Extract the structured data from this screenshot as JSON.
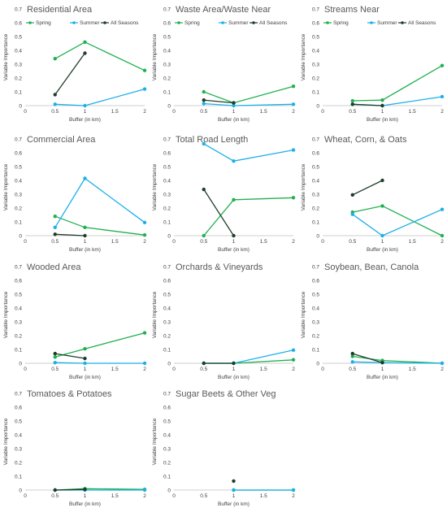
{
  "colors": {
    "spring": "#1fb04f",
    "summer": "#1cb0e8",
    "all_seasons": "#1f3d2a",
    "axis": "#bfbfbf",
    "text": "#595959"
  },
  "chart_data": [
    {
      "type": "line",
      "title": "Residential Area",
      "xlabel": "Buffer (in km)",
      "ylabel": "Variable Importance",
      "xlim": [
        0,
        2
      ],
      "ylim": [
        0,
        0.7
      ],
      "xticks": [
        "0",
        "0.5",
        "1",
        "1.5",
        "2"
      ],
      "yticks": [
        "0",
        "0.1",
        "0.2",
        "0.3",
        "0.4",
        "0.5",
        "0.6",
        "0.7"
      ],
      "legend": [
        "Spring",
        "Summer",
        "All Seasons"
      ],
      "series": [
        {
          "name": "Spring",
          "key": "spring",
          "points": [
            [
              0.5,
              0.34
            ],
            [
              1,
              0.46
            ],
            [
              2,
              0.255
            ]
          ]
        },
        {
          "name": "Summer",
          "key": "summer",
          "points": [
            [
              0.5,
              0.01
            ],
            [
              1,
              0.0
            ],
            [
              2,
              0.12
            ]
          ]
        },
        {
          "name": "All Seasons",
          "key": "all_seasons",
          "points": [
            [
              0.5,
              0.08
            ],
            [
              1,
              0.38
            ]
          ]
        }
      ]
    },
    {
      "type": "line",
      "title": "Waste Area/Waste Near",
      "xlabel": "Buffer (in km)",
      "ylabel": "Variable Importance",
      "xlim": [
        0,
        2
      ],
      "ylim": [
        0,
        0.7
      ],
      "xticks": [
        "0",
        "0.5",
        "1",
        "1.5",
        "2"
      ],
      "yticks": [
        "0",
        "0.1",
        "0.2",
        "0.3",
        "0.4",
        "0.5",
        "0.6",
        "0.7"
      ],
      "legend": [
        "Spring",
        "Summer",
        "All Seasons"
      ],
      "series": [
        {
          "name": "Spring",
          "key": "spring",
          "points": [
            [
              0.5,
              0.1
            ],
            [
              1,
              0.02
            ],
            [
              2,
              0.14
            ]
          ]
        },
        {
          "name": "Summer",
          "key": "summer",
          "points": [
            [
              0.5,
              0.015
            ],
            [
              1,
              0.0
            ],
            [
              2,
              0.01
            ]
          ]
        },
        {
          "name": "All Seasons",
          "key": "all_seasons",
          "points": [
            [
              0.5,
              0.04
            ],
            [
              1,
              0.02
            ]
          ]
        }
      ]
    },
    {
      "type": "line",
      "title": "Streams Near",
      "xlabel": "Buffer (in km)",
      "ylabel": "Variable Importance",
      "xlim": [
        0,
        2
      ],
      "ylim": [
        0,
        0.7
      ],
      "xticks": [
        "0",
        "0.5",
        "1",
        "1.5",
        "2"
      ],
      "yticks": [
        "0",
        "0.1",
        "0.2",
        "0.3",
        "0.4",
        "0.5",
        "0.6",
        "0.7"
      ],
      "legend": [
        "Spring",
        "Summer",
        "All Seasons"
      ],
      "series": [
        {
          "name": "Spring",
          "key": "spring",
          "points": [
            [
              0.5,
              0.035
            ],
            [
              1,
              0.04
            ],
            [
              2,
              0.29
            ]
          ]
        },
        {
          "name": "Summer",
          "key": "summer",
          "points": [
            [
              0.5,
              0.01
            ],
            [
              1,
              0.0
            ],
            [
              2,
              0.065
            ]
          ]
        },
        {
          "name": "All Seasons",
          "key": "all_seasons",
          "points": [
            [
              0.5,
              0.01
            ],
            [
              1,
              0.0
            ]
          ]
        }
      ]
    },
    {
      "type": "line",
      "title": "Commercial Area",
      "xlabel": "Buffer (in km)",
      "ylabel": "Variable Importance",
      "xlim": [
        0,
        2
      ],
      "ylim": [
        0,
        0.7
      ],
      "xticks": [
        "0",
        "0.5",
        "1",
        "1.5",
        "2"
      ],
      "yticks": [
        "0",
        "0.1",
        "0.2",
        "0.3",
        "0.4",
        "0.5",
        "0.6",
        "0.7"
      ],
      "legend": [],
      "series": [
        {
          "name": "Spring",
          "key": "spring",
          "points": [
            [
              0.5,
              0.14
            ],
            [
              1,
              0.06
            ],
            [
              2,
              0.005
            ]
          ]
        },
        {
          "name": "Summer",
          "key": "summer",
          "points": [
            [
              0.5,
              0.06
            ],
            [
              1,
              0.415
            ],
            [
              2,
              0.095
            ]
          ]
        },
        {
          "name": "All Seasons",
          "key": "all_seasons",
          "points": [
            [
              0.5,
              0.01
            ],
            [
              1,
              0.0
            ]
          ]
        }
      ]
    },
    {
      "type": "line",
      "title": "Total Road Length",
      "xlabel": "Buffer (in km)",
      "ylabel": "Variable Importance",
      "xlim": [
        0,
        2
      ],
      "ylim": [
        0,
        0.7
      ],
      "xticks": [
        "0",
        "0.5",
        "1",
        "1.5",
        "2"
      ],
      "yticks": [
        "0",
        "0.1",
        "0.2",
        "0.3",
        "0.4",
        "0.5",
        "0.6",
        "0.7"
      ],
      "legend": [],
      "series": [
        {
          "name": "Spring",
          "key": "spring",
          "points": [
            [
              0.5,
              0.0
            ],
            [
              1,
              0.26
            ],
            [
              2,
              0.275
            ]
          ]
        },
        {
          "name": "Summer",
          "key": "summer",
          "points": [
            [
              0.5,
              0.665
            ],
            [
              1,
              0.54
            ],
            [
              2,
              0.62
            ]
          ]
        },
        {
          "name": "All Seasons",
          "key": "all_seasons",
          "points": [
            [
              0.5,
              0.335
            ],
            [
              1,
              0.0
            ]
          ]
        }
      ]
    },
    {
      "type": "line",
      "title": "Wheat, Corn, & Oats",
      "xlabel": "Buffer (in km)",
      "ylabel": "Variable Importance",
      "xlim": [
        0,
        2
      ],
      "ylim": [
        0,
        0.7
      ],
      "xticks": [
        "0",
        "0.5",
        "1",
        "1.5",
        "2"
      ],
      "yticks": [
        "0",
        "0.1",
        "0.2",
        "0.3",
        "0.4",
        "0.5",
        "0.6",
        "0.7"
      ],
      "legend": [],
      "series": [
        {
          "name": "Spring",
          "key": "spring",
          "points": [
            [
              0.5,
              0.17
            ],
            [
              1,
              0.215
            ],
            [
              2,
              0.0
            ]
          ]
        },
        {
          "name": "Summer",
          "key": "summer",
          "points": [
            [
              0.5,
              0.155
            ],
            [
              1,
              0.0
            ],
            [
              2,
              0.19
            ]
          ]
        },
        {
          "name": "All Seasons",
          "key": "all_seasons",
          "points": [
            [
              0.5,
              0.295
            ],
            [
              1,
              0.4
            ]
          ]
        }
      ]
    },
    {
      "type": "line",
      "title": "Wooded Area",
      "xlabel": "Buffer (in km)",
      "ylabel": "Variable Importance",
      "xlim": [
        0,
        2
      ],
      "ylim": [
        0,
        0.7
      ],
      "xticks": [
        "0",
        "0.5",
        "1",
        "1.5",
        "2"
      ],
      "yticks": [
        "0",
        "0.1",
        "0.2",
        "0.3",
        "0.4",
        "0.5",
        "0.6",
        "0.7"
      ],
      "legend": [],
      "series": [
        {
          "name": "Spring",
          "key": "spring",
          "points": [
            [
              0.5,
              0.045
            ],
            [
              1,
              0.105
            ],
            [
              2,
              0.22
            ]
          ]
        },
        {
          "name": "Summer",
          "key": "summer",
          "points": [
            [
              0.5,
              0.005
            ],
            [
              1,
              0.0
            ],
            [
              2,
              0.0
            ]
          ]
        },
        {
          "name": "All Seasons",
          "key": "all_seasons",
          "points": [
            [
              0.5,
              0.07
            ],
            [
              1,
              0.035
            ]
          ]
        }
      ]
    },
    {
      "type": "line",
      "title": "Orchards & Vineyards",
      "xlabel": "Buffer (in km)",
      "ylabel": "Variable Importance",
      "xlim": [
        0,
        2
      ],
      "ylim": [
        0,
        0.7
      ],
      "xticks": [
        "0",
        "0.5",
        "1",
        "1.5",
        "2"
      ],
      "yticks": [
        "0",
        "0.1",
        "0.2",
        "0.3",
        "0.4",
        "0.5",
        "0.6",
        "0.7"
      ],
      "legend": [],
      "series": [
        {
          "name": "Spring",
          "key": "spring",
          "points": [
            [
              0.5,
              0.0
            ],
            [
              1,
              0.0
            ],
            [
              2,
              0.025
            ]
          ]
        },
        {
          "name": "Summer",
          "key": "summer",
          "points": [
            [
              0.5,
              0.0
            ],
            [
              1,
              0.0
            ],
            [
              2,
              0.095
            ]
          ]
        },
        {
          "name": "All Seasons",
          "key": "all_seasons",
          "points": [
            [
              0.5,
              0.0
            ],
            [
              1,
              0.0
            ]
          ]
        }
      ]
    },
    {
      "type": "line",
      "title": "Soybean, Bean, Canola",
      "xlabel": "Buffer (in km)",
      "ylabel": "Variable Importance",
      "xlim": [
        0,
        2
      ],
      "ylim": [
        0,
        0.7
      ],
      "xticks": [
        "0",
        "0.5",
        "1",
        "1.5",
        "2"
      ],
      "yticks": [
        "0",
        "0.1",
        "0.2",
        "0.3",
        "0.4",
        "0.5",
        "0.6",
        "0.7"
      ],
      "legend": [],
      "series": [
        {
          "name": "Spring",
          "key": "spring",
          "points": [
            [
              0.5,
              0.05
            ],
            [
              1,
              0.02
            ],
            [
              2,
              0.0
            ]
          ]
        },
        {
          "name": "Summer",
          "key": "summer",
          "points": [
            [
              0.5,
              0.01
            ],
            [
              1,
              0.005
            ],
            [
              2,
              0.0
            ]
          ]
        },
        {
          "name": "All Seasons",
          "key": "all_seasons",
          "points": [
            [
              0.5,
              0.07
            ],
            [
              1,
              0.005
            ]
          ]
        }
      ]
    },
    {
      "type": "line",
      "title": "Tomatoes & Potatoes",
      "xlabel": "Buffer (in km)",
      "ylabel": "Variable Importance",
      "xlim": [
        0,
        2
      ],
      "ylim": [
        0,
        0.7
      ],
      "xticks": [
        "0",
        "0.5",
        "1",
        "1.5",
        "2"
      ],
      "yticks": [
        "0",
        "0.1",
        "0.2",
        "0.3",
        "0.4",
        "0.5",
        "0.6",
        "0.7"
      ],
      "legend": [],
      "series": [
        {
          "name": "Spring",
          "key": "spring",
          "points": [
            [
              0.5,
              0.0
            ],
            [
              1,
              0.01
            ],
            [
              2,
              0.005
            ]
          ]
        },
        {
          "name": "Summer",
          "key": "summer",
          "points": [
            [
              0.5,
              0.0
            ],
            [
              1,
              0.0
            ],
            [
              2,
              0.0
            ]
          ]
        },
        {
          "name": "All Seasons",
          "key": "all_seasons",
          "points": [
            [
              0.5,
              0.0
            ],
            [
              1,
              0.005
            ]
          ]
        }
      ]
    },
    {
      "type": "line",
      "title": "Sugar Beets & Other Veg",
      "xlabel": "Buffer (in km)",
      "ylabel": "Variable Importance",
      "xlim": [
        0,
        2
      ],
      "ylim": [
        0,
        0.7
      ],
      "xticks": [
        "0",
        "0.5",
        "1",
        "1.5",
        "2"
      ],
      "yticks": [
        "0",
        "0.1",
        "0.2",
        "0.3",
        "0.4",
        "0.5",
        "0.6",
        "0.7"
      ],
      "legend": [],
      "series": [
        {
          "name": "Spring",
          "key": "spring",
          "points": [
            [
              1,
              0.0
            ],
            [
              2,
              0.0
            ]
          ]
        },
        {
          "name": "Summer",
          "key": "summer",
          "points": [
            [
              1,
              0.0
            ],
            [
              2,
              0.0
            ]
          ]
        },
        {
          "name": "All Seasons",
          "key": "all_seasons",
          "points": [
            [
              1,
              0.065
            ]
          ]
        }
      ]
    }
  ]
}
